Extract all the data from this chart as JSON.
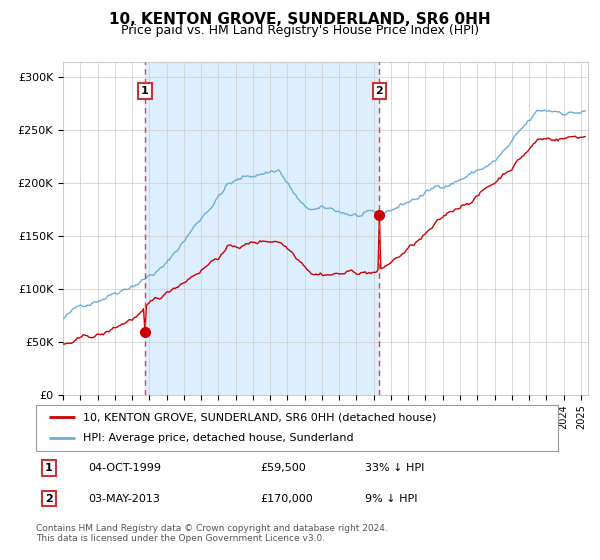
{
  "title": "10, KENTON GROVE, SUNDERLAND, SR6 0HH",
  "subtitle": "Price paid vs. HM Land Registry's House Price Index (HPI)",
  "ylabel_ticks": [
    "£0",
    "£50K",
    "£100K",
    "£150K",
    "£200K",
    "£250K",
    "£300K"
  ],
  "ytick_vals": [
    0,
    50000,
    100000,
    150000,
    200000,
    250000,
    300000
  ],
  "ylim": [
    0,
    315000
  ],
  "sale1_year": 1999,
  "sale1_month": 10,
  "sale1_price": 59500,
  "sale2_year": 2013,
  "sale2_month": 5,
  "sale2_price": 170000,
  "legend1": "10, KENTON GROVE, SUNDERLAND, SR6 0HH (detached house)",
  "legend2": "HPI: Average price, detached house, Sunderland",
  "table_row1_num": "1",
  "table_row1_date": "04-OCT-1999",
  "table_row1_price": "£59,500",
  "table_row1_hpi": "33% ↓ HPI",
  "table_row2_num": "2",
  "table_row2_date": "03-MAY-2013",
  "table_row2_price": "£170,000",
  "table_row2_hpi": "9% ↓ HPI",
  "footer_line1": "Contains HM Land Registry data © Crown copyright and database right 2024.",
  "footer_line2": "This data is licensed under the Open Government Licence v3.0.",
  "hpi_color": "#6baed6",
  "property_color": "#cc0000",
  "shade_color": "#ddeeff",
  "grid_color": "#cccccc",
  "vline1_color": "#dd4444",
  "vline2_color": "#dd4444",
  "bg_color": "#ffffff"
}
